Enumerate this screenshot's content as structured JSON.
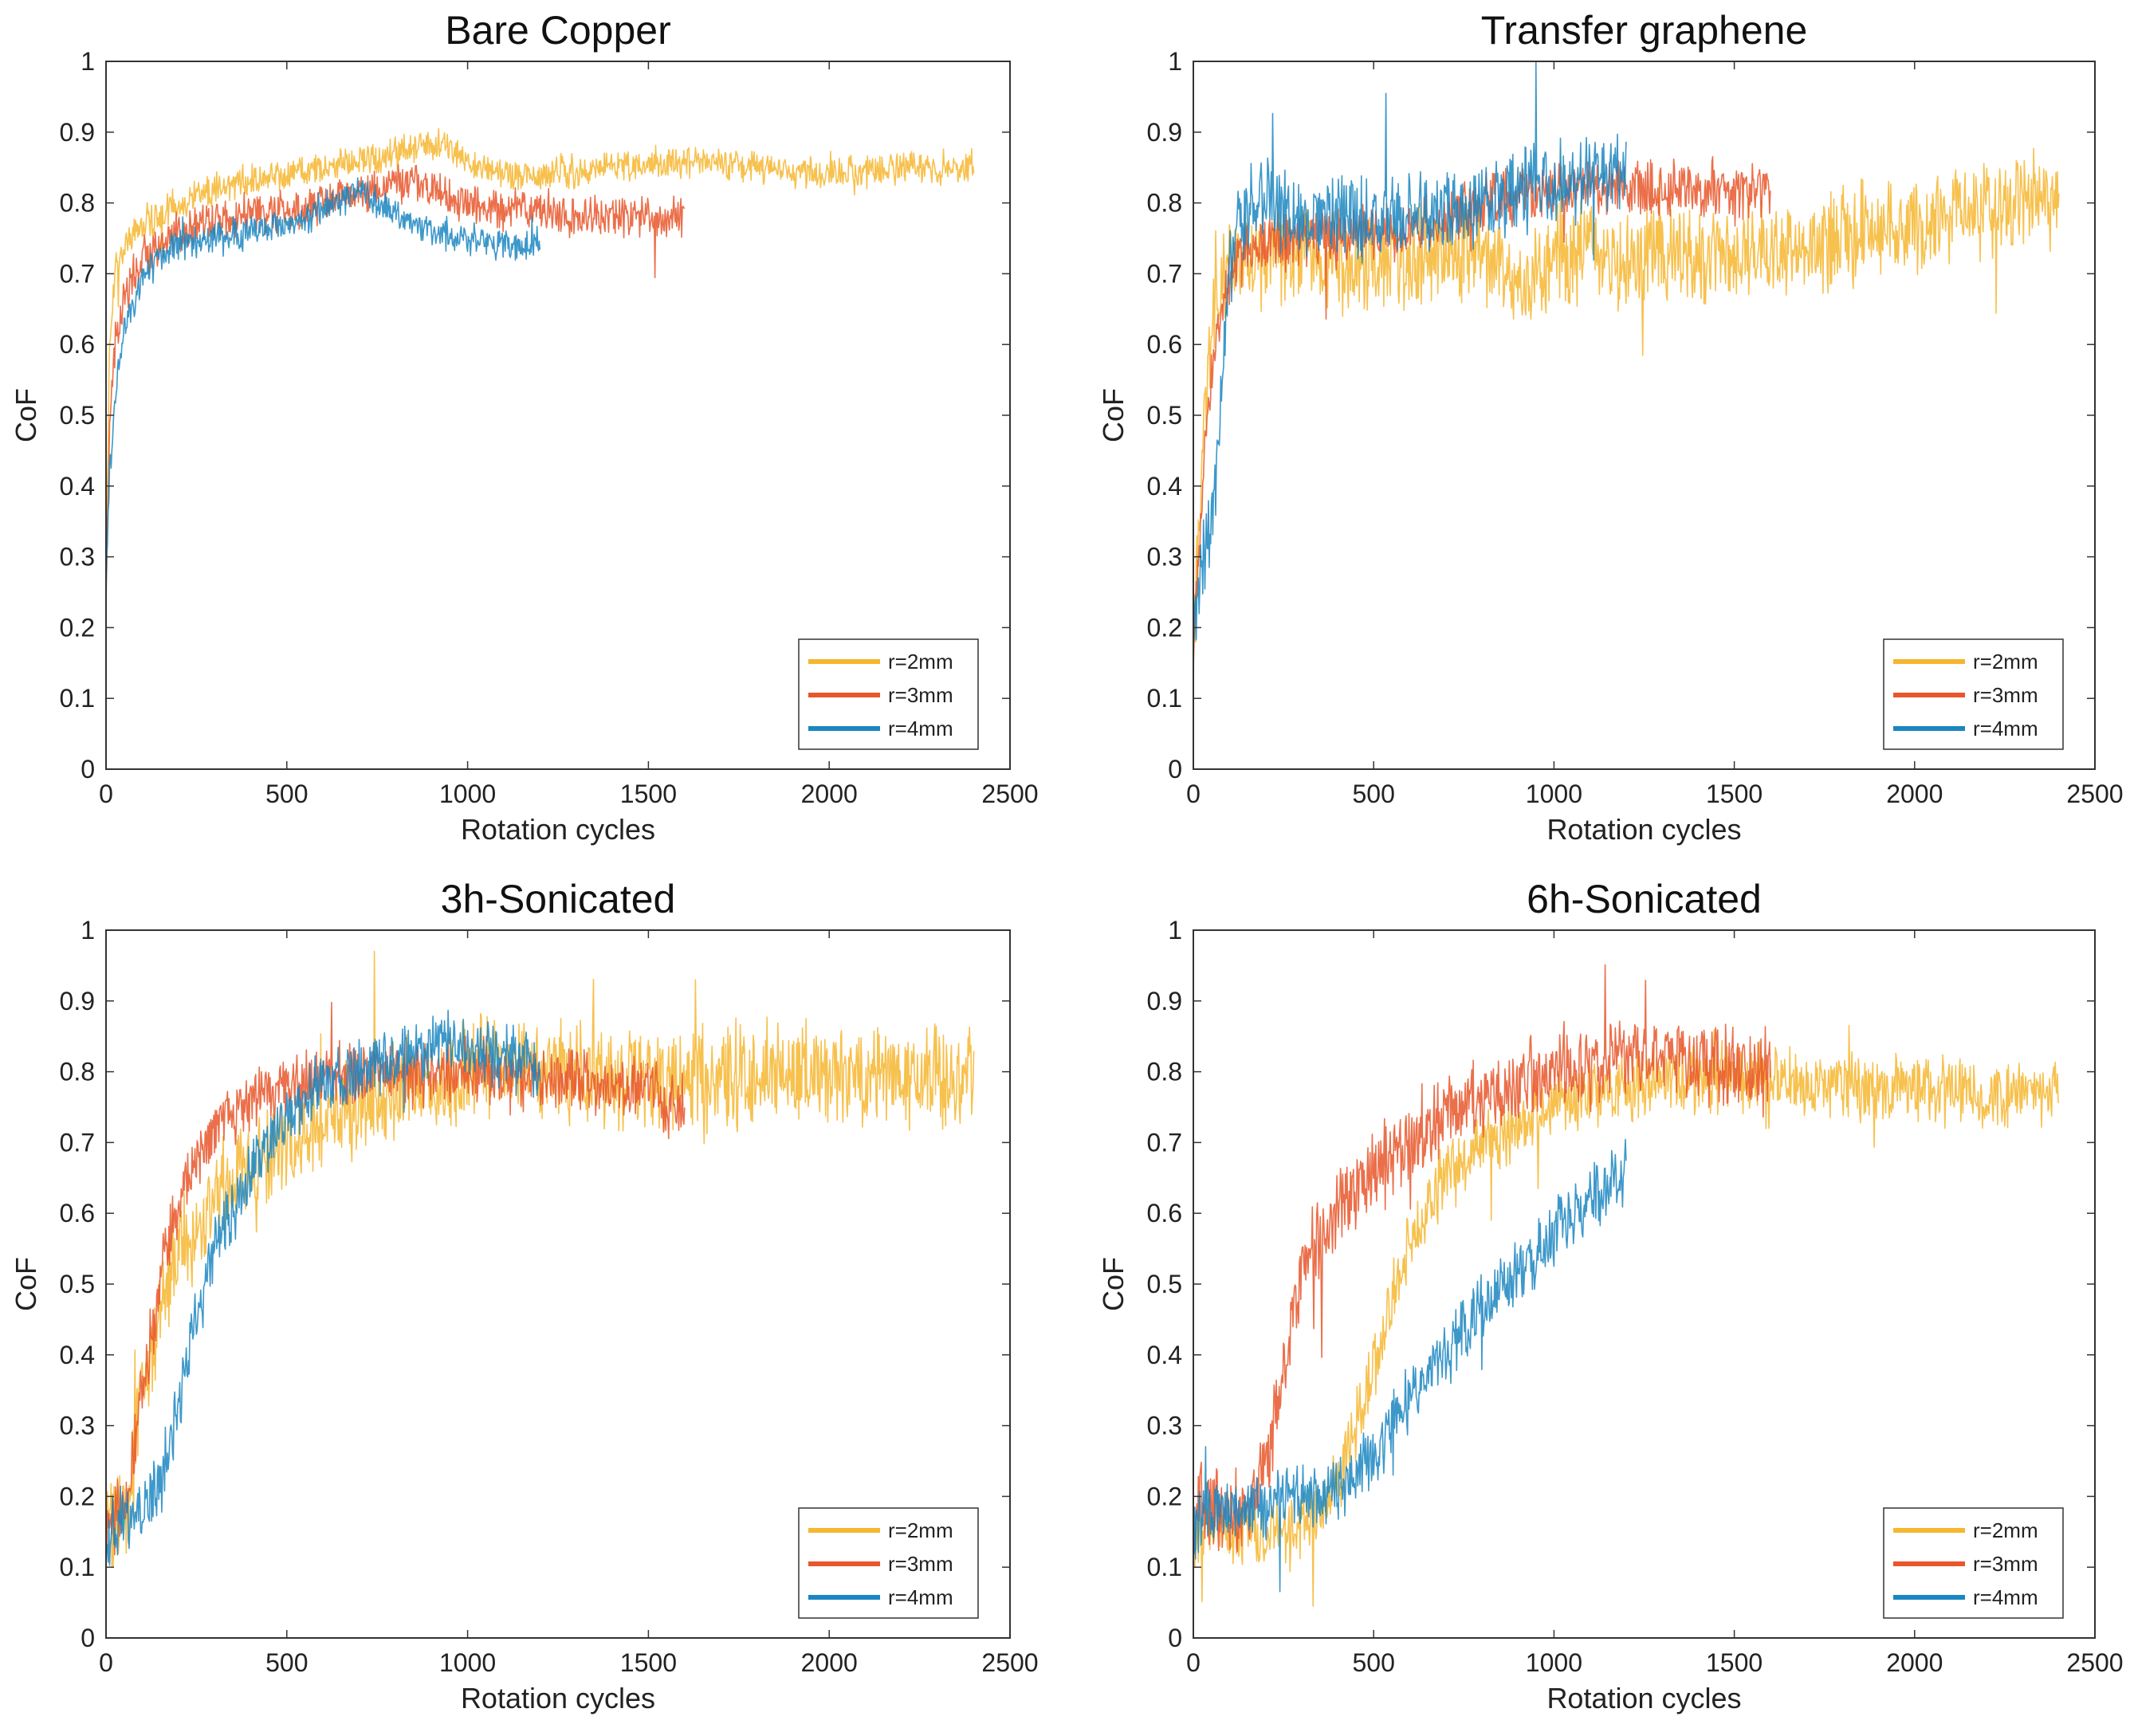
{
  "figure": {
    "colors": {
      "r2": "#F6B62F",
      "r3": "#E8562A",
      "r4": "#1B86C1"
    }
  },
  "chart_data": [
    {
      "type": "line",
      "title": "Bare Copper",
      "xlabel": "Rotation cycles",
      "ylabel": "CoF",
      "xlim": [
        0,
        2500
      ],
      "ylim": [
        0,
        1
      ],
      "xticks": [
        "0",
        "500",
        "1000",
        "1500",
        "2000",
        "2500"
      ],
      "yticks": [
        "0",
        "0.1",
        "0.2",
        "0.3",
        "0.4",
        "0.5",
        "0.6",
        "0.7",
        "0.8",
        "0.9",
        "1"
      ],
      "legend_position": "bottom-right",
      "series": [
        {
          "name": "r=2mm",
          "color": "#F6B62F",
          "noise": 0.02,
          "x": [
            0,
            10,
            25,
            50,
            100,
            200,
            300,
            500,
            700,
            800,
            900,
            950,
            1000,
            1100,
            1200,
            1400,
            1600,
            1800,
            2000,
            2200,
            2400
          ],
          "y": [
            0.25,
            0.6,
            0.7,
            0.74,
            0.77,
            0.8,
            0.82,
            0.84,
            0.86,
            0.87,
            0.885,
            0.88,
            0.86,
            0.84,
            0.84,
            0.85,
            0.86,
            0.85,
            0.84,
            0.85,
            0.85
          ]
        },
        {
          "name": "r=3mm",
          "color": "#E8562A",
          "noise": 0.025,
          "x": [
            0,
            10,
            25,
            50,
            100,
            200,
            300,
            500,
            700,
            800,
            900,
            1000,
            1100,
            1200,
            1300,
            1400,
            1500,
            1600
          ],
          "y": [
            0.25,
            0.5,
            0.6,
            0.67,
            0.72,
            0.76,
            0.78,
            0.79,
            0.81,
            0.83,
            0.82,
            0.8,
            0.79,
            0.79,
            0.78,
            0.78,
            0.78,
            0.78
          ]
        },
        {
          "name": "r=4mm",
          "color": "#1B86C1",
          "noise": 0.02,
          "x": [
            0,
            10,
            25,
            50,
            100,
            150,
            200,
            300,
            400,
            500,
            600,
            700,
            750,
            800,
            900,
            1000,
            1100,
            1200
          ],
          "y": [
            0.25,
            0.42,
            0.53,
            0.62,
            0.69,
            0.72,
            0.74,
            0.75,
            0.76,
            0.77,
            0.79,
            0.82,
            0.8,
            0.78,
            0.76,
            0.75,
            0.74,
            0.74
          ]
        }
      ]
    },
    {
      "type": "line",
      "title": "Transfer graphene",
      "xlabel": "Rotation cycles",
      "ylabel": "CoF",
      "xlim": [
        0,
        2500
      ],
      "ylim": [
        0,
        1
      ],
      "xticks": [
        "0",
        "500",
        "1000",
        "1500",
        "2000",
        "2500"
      ],
      "yticks": [
        "0",
        "0.1",
        "0.2",
        "0.3",
        "0.4",
        "0.5",
        "0.6",
        "0.7",
        "0.8",
        "0.9",
        "1"
      ],
      "legend_position": "bottom-right",
      "series": [
        {
          "name": "r=2mm",
          "color": "#F6B62F",
          "noise": 0.06,
          "x": [
            0,
            10,
            30,
            60,
            100,
            150,
            200,
            400,
            600,
            800,
            900,
            1000,
            1100,
            1200,
            1400,
            1600,
            1800,
            2000,
            2200,
            2400
          ],
          "y": [
            0.15,
            0.3,
            0.5,
            0.65,
            0.72,
            0.73,
            0.73,
            0.72,
            0.72,
            0.74,
            0.68,
            0.72,
            0.74,
            0.72,
            0.72,
            0.73,
            0.75,
            0.77,
            0.8,
            0.8
          ]
        },
        {
          "name": "r=3mm",
          "color": "#E8562A",
          "noise": 0.035,
          "x": [
            0,
            10,
            30,
            60,
            100,
            150,
            200,
            400,
            600,
            700,
            800,
            1000,
            1200,
            1400,
            1600
          ],
          "y": [
            0.15,
            0.25,
            0.45,
            0.6,
            0.7,
            0.74,
            0.75,
            0.75,
            0.76,
            0.78,
            0.8,
            0.82,
            0.82,
            0.82,
            0.81
          ]
        },
        {
          "name": "r=4mm",
          "color": "#1B86C1",
          "noise": 0.05,
          "x": [
            0,
            10,
            30,
            60,
            80,
            100,
            130,
            180,
            300,
            500,
            600,
            800,
            1000,
            1100,
            1200
          ],
          "y": [
            0.2,
            0.25,
            0.3,
            0.4,
            0.55,
            0.7,
            0.78,
            0.8,
            0.78,
            0.78,
            0.78,
            0.8,
            0.83,
            0.84,
            0.85
          ]
        }
      ]
    },
    {
      "type": "line",
      "title": "3h-Sonicated",
      "xlabel": "Rotation cycles",
      "ylabel": "CoF",
      "xlim": [
        0,
        2500
      ],
      "ylim": [
        0,
        1
      ],
      "xticks": [
        "0",
        "500",
        "1000",
        "1500",
        "2000",
        "2500"
      ],
      "yticks": [
        "0",
        "0.1",
        "0.2",
        "0.3",
        "0.4",
        "0.5",
        "0.6",
        "0.7",
        "0.8",
        "0.9",
        "1"
      ],
      "legend_position": "bottom-right",
      "series": [
        {
          "name": "r=2mm",
          "color": "#F6B62F",
          "noise": 0.06,
          "x": [
            0,
            20,
            60,
            100,
            150,
            200,
            300,
            400,
            500,
            600,
            800,
            1000,
            1100,
            1200,
            1400,
            1600,
            1800,
            2000,
            2200,
            2400
          ],
          "y": [
            0.15,
            0.16,
            0.18,
            0.35,
            0.47,
            0.55,
            0.62,
            0.67,
            0.7,
            0.73,
            0.77,
            0.8,
            0.81,
            0.8,
            0.79,
            0.79,
            0.8,
            0.8,
            0.79,
            0.79
          ]
        },
        {
          "name": "r=3mm",
          "color": "#E8562A",
          "noise": 0.04,
          "x": [
            0,
            20,
            60,
            100,
            150,
            200,
            300,
            400,
            500,
            600,
            800,
            1000,
            1100,
            1200,
            1400,
            1500,
            1600
          ],
          "y": [
            0.15,
            0.16,
            0.2,
            0.35,
            0.5,
            0.62,
            0.72,
            0.76,
            0.78,
            0.79,
            0.8,
            0.8,
            0.79,
            0.79,
            0.78,
            0.77,
            0.75
          ]
        },
        {
          "name": "r=4mm",
          "color": "#1B86C1",
          "noise": 0.04,
          "x": [
            0,
            20,
            60,
            100,
            150,
            200,
            250,
            300,
            400,
            500,
            600,
            700,
            800,
            900,
            1000,
            1100,
            1200
          ],
          "y": [
            0.1,
            0.16,
            0.17,
            0.18,
            0.22,
            0.33,
            0.45,
            0.55,
            0.66,
            0.74,
            0.78,
            0.8,
            0.82,
            0.83,
            0.84,
            0.82,
            0.8
          ]
        }
      ]
    },
    {
      "type": "line",
      "title": "6h-Sonicated",
      "xlabel": "Rotation cycles",
      "ylabel": "CoF",
      "xlim": [
        0,
        2500
      ],
      "ylim": [
        0,
        1
      ],
      "xticks": [
        "0",
        "500",
        "1000",
        "1500",
        "2000",
        "2500"
      ],
      "yticks": [
        "0",
        "0.1",
        "0.2",
        "0.3",
        "0.4",
        "0.5",
        "0.6",
        "0.7",
        "0.8",
        "0.9",
        "1"
      ],
      "legend_position": "bottom-right",
      "series": [
        {
          "name": "r=2mm",
          "color": "#F6B62F",
          "noise": 0.04,
          "x": [
            0,
            20,
            60,
            100,
            200,
            300,
            400,
            450,
            500,
            550,
            600,
            700,
            800,
            1000,
            1200,
            1400,
            1600,
            1800,
            2000,
            2200,
            2400
          ],
          "y": [
            0.12,
            0.15,
            0.15,
            0.15,
            0.15,
            0.16,
            0.22,
            0.3,
            0.38,
            0.48,
            0.56,
            0.65,
            0.7,
            0.75,
            0.78,
            0.79,
            0.79,
            0.78,
            0.78,
            0.77,
            0.77
          ]
        },
        {
          "name": "r=3mm",
          "color": "#E8562A",
          "noise": 0.05,
          "x": [
            0,
            20,
            60,
            100,
            150,
            200,
            250,
            300,
            400,
            500,
            600,
            700,
            800,
            1000,
            1200,
            1300,
            1400,
            1600
          ],
          "y": [
            0.15,
            0.2,
            0.18,
            0.17,
            0.18,
            0.24,
            0.38,
            0.52,
            0.6,
            0.66,
            0.7,
            0.74,
            0.76,
            0.8,
            0.82,
            0.82,
            0.81,
            0.8
          ]
        },
        {
          "name": "r=4mm",
          "color": "#1B86C1",
          "noise": 0.04,
          "x": [
            0,
            20,
            60,
            100,
            200,
            300,
            400,
            500,
            600,
            700,
            800,
            900,
            1000,
            1100,
            1200
          ],
          "y": [
            0.15,
            0.17,
            0.18,
            0.18,
            0.19,
            0.2,
            0.21,
            0.26,
            0.34,
            0.4,
            0.47,
            0.52,
            0.57,
            0.62,
            0.66
          ]
        }
      ]
    }
  ]
}
